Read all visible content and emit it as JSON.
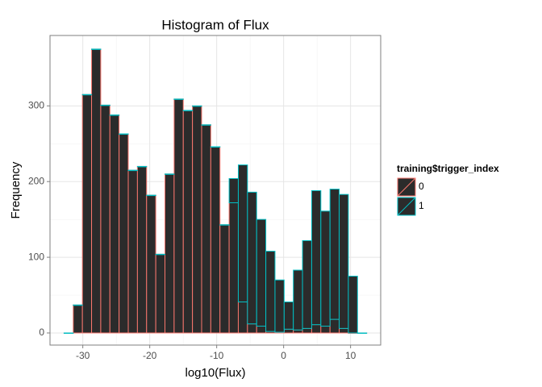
{
  "chart_data": {
    "type": "histogram",
    "title": "Histogram of Flux",
    "x_label": "log10(Flux)",
    "y_label": "Frequency",
    "legend_title": "training$trigger_index",
    "legend_position": "right",
    "grid": true,
    "stacked": true,
    "bar_fill": "#2b2b2b",
    "bins": [
      -32.8,
      -31.43,
      -30.06,
      -28.69,
      -27.32,
      -25.95,
      -24.58,
      -23.21,
      -21.84,
      -20.47,
      -19.1,
      -17.73,
      -16.36,
      -14.99,
      -13.62,
      -12.25,
      -10.88,
      -9.51,
      -8.14,
      -6.77,
      -5.4,
      -4.03,
      -2.66,
      -1.29,
      0.08,
      1.45,
      2.82,
      4.19,
      5.56,
      6.93,
      8.3,
      9.67,
      11.04,
      12.41
    ],
    "series": [
      {
        "name": "0",
        "color": "#F8766D",
        "values": [
          0,
          37,
          315,
          375,
          301,
          288,
          263,
          215,
          220,
          182,
          104,
          210,
          309,
          294,
          300,
          275,
          246,
          143,
          172,
          41,
          12,
          9,
          2,
          1,
          5,
          4,
          6,
          11,
          9,
          18,
          6,
          0,
          0
        ]
      },
      {
        "name": "1",
        "color": "#00BFC4",
        "values": [
          0,
          0,
          0,
          0,
          0,
          0,
          0,
          0,
          0,
          0,
          0,
          0,
          0,
          0,
          0,
          0,
          0,
          0,
          32,
          181,
          174,
          141,
          106,
          69,
          36,
          79,
          116,
          177,
          152,
          172,
          177,
          75,
          0
        ]
      }
    ],
    "xlim": [
      -34.9,
      14.5
    ],
    "ylim": [
      -16,
      393
    ],
    "xticks": [
      -30,
      -20,
      -10,
      0,
      10
    ],
    "yticks": [
      0,
      100,
      200,
      300
    ]
  }
}
